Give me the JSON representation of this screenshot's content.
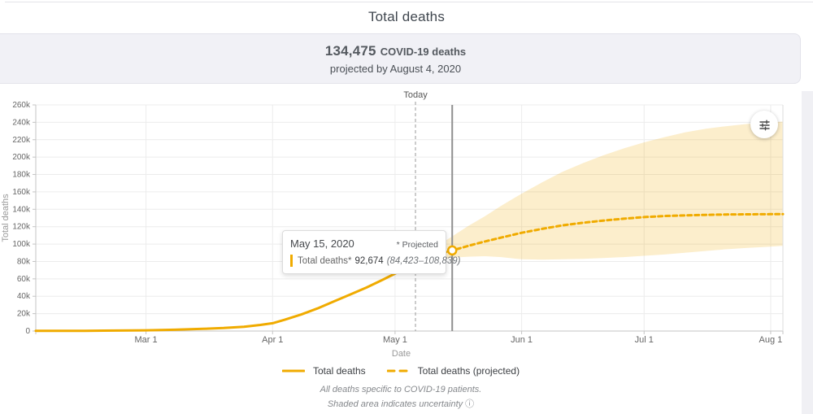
{
  "header": {
    "title": "Total deaths"
  },
  "banner": {
    "headline_number": "134,475",
    "headline_label": "COVID-19 deaths",
    "subline": "projected by August 4, 2020"
  },
  "tooltip": {
    "date": "May 15, 2020",
    "projected_note": "* Projected",
    "series_label": "Total deaths*",
    "value": "92,674",
    "range": "(84,423–108,839)"
  },
  "legend": {
    "items": [
      {
        "label": "Total deaths",
        "style": "solid"
      },
      {
        "label": "Total deaths (projected)",
        "style": "dashed"
      }
    ]
  },
  "footnotes": {
    "line1": "All deaths specific to COVID-19 patients.",
    "line2": "Shaded area indicates uncertainty",
    "info_icon": "ⓘ"
  },
  "colors": {
    "accent": "#F0AB00",
    "band": "rgba(240,171,0,0.20)",
    "grid": "#ececec",
    "axis": "#c4c4c4",
    "plot_right_border": "#dddddd",
    "today_line": "#999999",
    "hover_line": "#8f8f8f",
    "banner_bg": "#f1f1f6"
  },
  "chart_data": {
    "type": "line",
    "title": "Total deaths",
    "xlabel": "Date",
    "ylabel": "Total deaths",
    "x_domain": [
      "2020-02-03",
      "2020-08-04"
    ],
    "ylim": [
      0,
      260000
    ],
    "grid": true,
    "legend_position": "bottom",
    "y_ticks": [
      {
        "value": 0,
        "label": "0"
      },
      {
        "value": 20000,
        "label": "20k"
      },
      {
        "value": 40000,
        "label": "40k"
      },
      {
        "value": 60000,
        "label": "60k"
      },
      {
        "value": 80000,
        "label": "80k"
      },
      {
        "value": 100000,
        "label": "100k"
      },
      {
        "value": 120000,
        "label": "120k"
      },
      {
        "value": 140000,
        "label": "140k"
      },
      {
        "value": 160000,
        "label": "160k"
      },
      {
        "value": 180000,
        "label": "180k"
      },
      {
        "value": 200000,
        "label": "200k"
      },
      {
        "value": 220000,
        "label": "220k"
      },
      {
        "value": 240000,
        "label": "240k"
      },
      {
        "value": 260000,
        "label": "260k"
      }
    ],
    "x_ticks": [
      {
        "date": "2020-03-01",
        "label": "Mar 1"
      },
      {
        "date": "2020-04-01",
        "label": "Apr 1"
      },
      {
        "date": "2020-05-01",
        "label": "May 1"
      },
      {
        "date": "2020-06-01",
        "label": "Jun 1"
      },
      {
        "date": "2020-07-01",
        "label": "Jul 1"
      },
      {
        "date": "2020-08-01",
        "label": "Aug 1"
      }
    ],
    "today": {
      "date": "2020-05-06",
      "label": "Today"
    },
    "hover_point": {
      "date": "2020-05-15",
      "value": 92674
    },
    "series": [
      {
        "name": "Total deaths",
        "style": "solid",
        "color": "#F0AB00",
        "points": [
          [
            "2020-02-03",
            300
          ],
          [
            "2020-02-15",
            300
          ],
          [
            "2020-03-01",
            800
          ],
          [
            "2020-03-08",
            1500
          ],
          [
            "2020-03-15",
            2500
          ],
          [
            "2020-03-20",
            3500
          ],
          [
            "2020-03-25",
            5000
          ],
          [
            "2020-03-29",
            7000
          ],
          [
            "2020-04-01",
            9000
          ],
          [
            "2020-04-04",
            13000
          ],
          [
            "2020-04-08",
            19000
          ],
          [
            "2020-04-12",
            26000
          ],
          [
            "2020-04-16",
            34000
          ],
          [
            "2020-04-20",
            42000
          ],
          [
            "2020-04-24",
            50000
          ],
          [
            "2020-04-28",
            59000
          ],
          [
            "2020-05-01",
            66000
          ],
          [
            "2020-05-03",
            71000
          ],
          [
            "2020-05-06",
            77000
          ]
        ]
      },
      {
        "name": "Total deaths (projected)",
        "style": "dashed",
        "color": "#F0AB00",
        "points": [
          [
            "2020-05-06",
            77000
          ],
          [
            "2020-05-09",
            84000
          ],
          [
            "2020-05-12",
            89000
          ],
          [
            "2020-05-15",
            92674
          ],
          [
            "2020-05-19",
            98000
          ],
          [
            "2020-05-23",
            103000
          ],
          [
            "2020-05-27",
            107500
          ],
          [
            "2020-06-01",
            113000
          ],
          [
            "2020-06-06",
            117500
          ],
          [
            "2020-06-11",
            121500
          ],
          [
            "2020-06-16",
            124500
          ],
          [
            "2020-06-21",
            127000
          ],
          [
            "2020-06-26",
            129200
          ],
          [
            "2020-07-01",
            131000
          ],
          [
            "2020-07-06",
            132200
          ],
          [
            "2020-07-11",
            133000
          ],
          [
            "2020-07-16",
            133600
          ],
          [
            "2020-07-21",
            134000
          ],
          [
            "2020-07-26",
            134250
          ],
          [
            "2020-08-01",
            134400
          ],
          [
            "2020-08-04",
            134475
          ]
        ]
      }
    ],
    "uncertainty_band": {
      "label": "Shaded area indicates uncertainty",
      "points": [
        [
          "2020-05-06",
          75000,
          79000
        ],
        [
          "2020-05-09",
          79000,
          91000
        ],
        [
          "2020-05-12",
          82000,
          100000
        ],
        [
          "2020-05-15",
          84423,
          108839
        ],
        [
          "2020-05-19",
          85500,
          121000
        ],
        [
          "2020-05-23",
          86000,
          132000
        ],
        [
          "2020-05-27",
          85000,
          144000
        ],
        [
          "2020-06-01",
          82500,
          158000
        ],
        [
          "2020-06-06",
          82000,
          171000
        ],
        [
          "2020-06-11",
          82500,
          183000
        ],
        [
          "2020-06-16",
          83000,
          193000
        ],
        [
          "2020-06-21",
          84000,
          202000
        ],
        [
          "2020-06-26",
          85000,
          210000
        ],
        [
          "2020-07-01",
          86500,
          217000
        ],
        [
          "2020-07-06",
          88000,
          223000
        ],
        [
          "2020-07-11",
          90000,
          228500
        ],
        [
          "2020-07-16",
          92000,
          232500
        ],
        [
          "2020-07-21",
          94000,
          235500
        ],
        [
          "2020-07-26",
          95500,
          238000
        ],
        [
          "2020-08-01",
          97000,
          240000
        ],
        [
          "2020-08-04",
          98000,
          240800
        ]
      ]
    }
  }
}
